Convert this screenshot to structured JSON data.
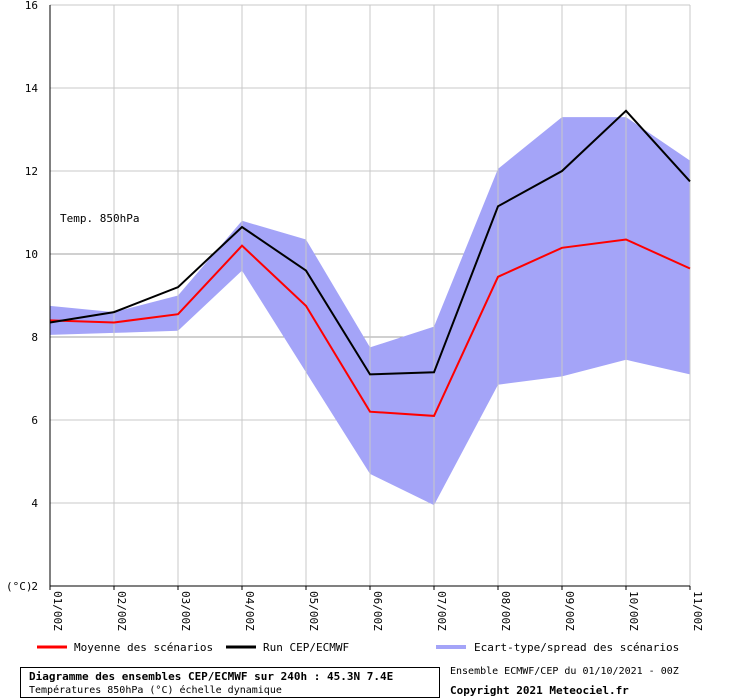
{
  "chart_data": {
    "type": "line",
    "annotation": "Temp. 850hPa",
    "ylabel": "(°C)",
    "ylim": [
      2,
      16
    ],
    "yticks": [
      2,
      4,
      6,
      8,
      10,
      12,
      14,
      16
    ],
    "grid": true,
    "categories": [
      "01/00Z",
      "02/00Z",
      "03/00Z",
      "04/00Z",
      "05/00Z",
      "06/00Z",
      "07/00Z",
      "08/00Z",
      "09/00Z",
      "10/00Z",
      "11/00Z"
    ],
    "series": [
      {
        "name": "Moyenne des scénarios",
        "color": "#ff0000",
        "values": [
          8.4,
          8.35,
          8.55,
          10.2,
          8.75,
          6.2,
          6.1,
          9.45,
          10.15,
          10.35,
          9.65
        ]
      },
      {
        "name": "Run CEP/ECMWF",
        "color": "#000000",
        "values": [
          8.35,
          8.6,
          9.2,
          10.65,
          9.6,
          7.1,
          7.15,
          11.15,
          12.0,
          13.45,
          11.75
        ]
      }
    ],
    "band": {
      "name": "Ecart-type/spread des scénarios",
      "color": "#a4a4f8",
      "upper": [
        8.75,
        8.6,
        9.0,
        10.8,
        10.35,
        7.75,
        8.25,
        12.05,
        13.3,
        13.3,
        12.25
      ],
      "lower": [
        8.05,
        8.1,
        8.15,
        9.6,
        7.15,
        4.7,
        3.95,
        6.85,
        7.05,
        7.45,
        7.1
      ]
    }
  },
  "footer": {
    "title": "Diagramme des ensembles CEP/ECMWF sur 240h : 45.3N 7.4E",
    "subtitle": "Températures 850hPa (°C) échelle dynamique",
    "info": "Ensemble ECMWF/CEP du 01/10/2021 - 00Z",
    "copyright": "Copyright 2021 Meteociel.fr"
  }
}
